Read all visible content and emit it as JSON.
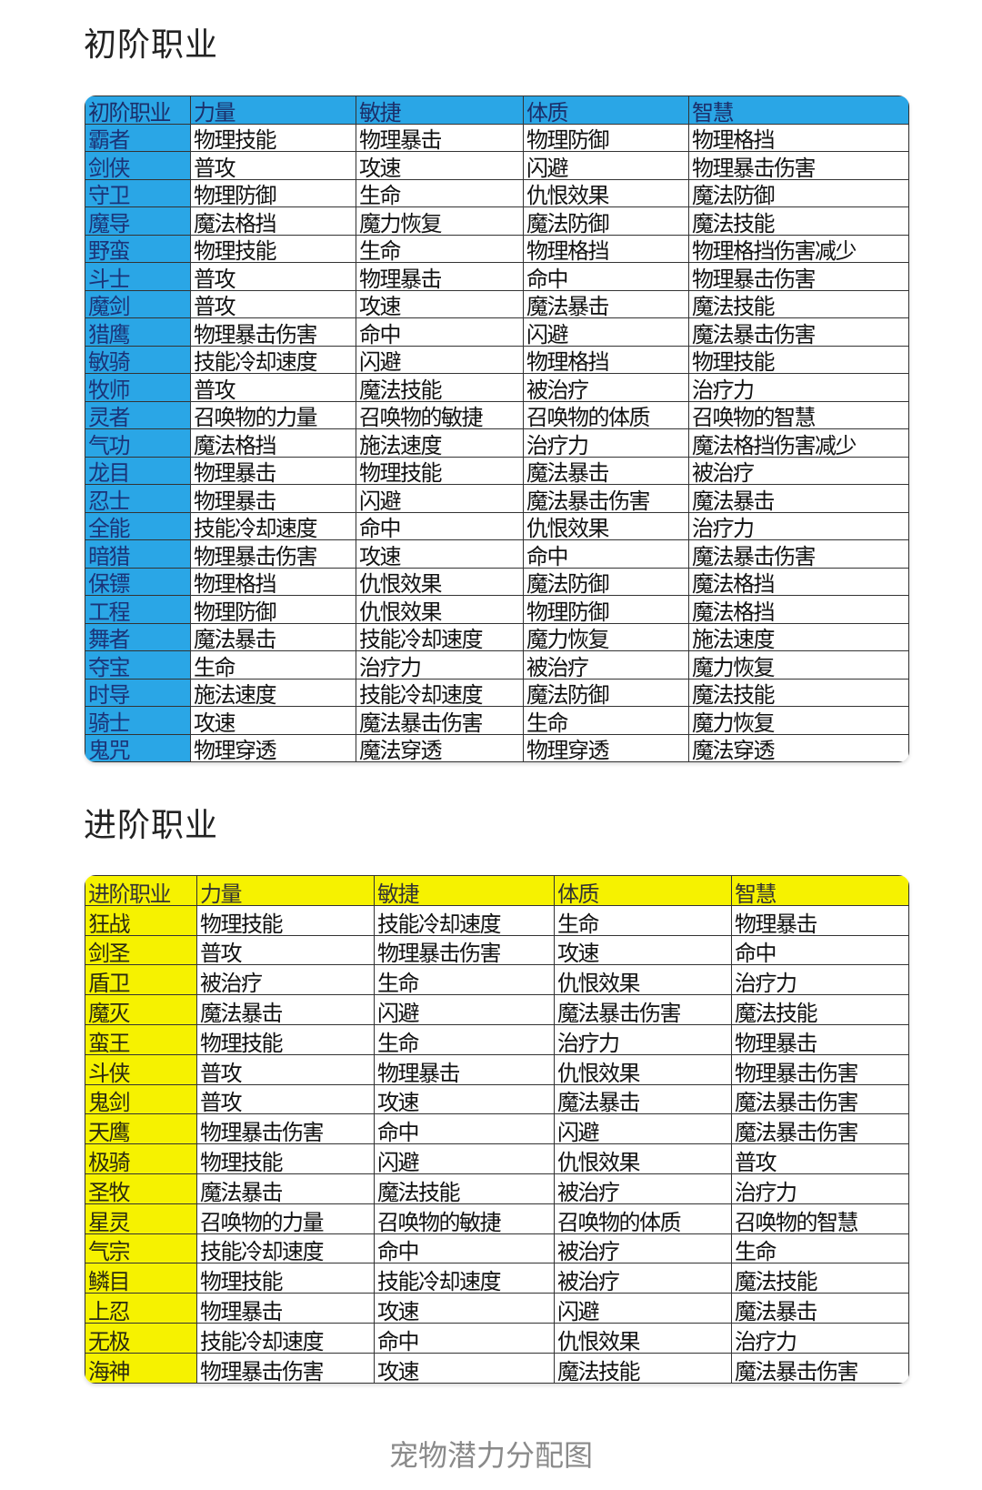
{
  "basic": {
    "title": "初阶职业",
    "header": [
      "初阶职业",
      "力量",
      "敏捷",
      "体质",
      "智慧"
    ],
    "header_color": "#2aa6e6",
    "rows": [
      [
        "霸者",
        "物理技能",
        "物理暴击",
        "物理防御",
        "物理格挡"
      ],
      [
        "剑侠",
        "普攻",
        "攻速",
        "闪避",
        "物理暴击伤害"
      ],
      [
        "守卫",
        "物理防御",
        "生命",
        "仇恨效果",
        "魔法防御"
      ],
      [
        "魔导",
        "魔法格挡",
        "魔力恢复",
        "魔法防御",
        "魔法技能"
      ],
      [
        "野蛮",
        "物理技能",
        "生命",
        "物理格挡",
        "物理格挡伤害减少"
      ],
      [
        "斗士",
        "普攻",
        "物理暴击",
        "命中",
        "物理暴击伤害"
      ],
      [
        "魔剑",
        "普攻",
        "攻速",
        "魔法暴击",
        "魔法技能"
      ],
      [
        "猎鹰",
        "物理暴击伤害",
        "命中",
        "闪避",
        "魔法暴击伤害"
      ],
      [
        "敏骑",
        "技能冷却速度",
        "闪避",
        "物理格挡",
        "物理技能"
      ],
      [
        "牧师",
        "普攻",
        "魔法技能",
        "被治疗",
        "治疗力"
      ],
      [
        "灵者",
        "召唤物的力量",
        "召唤物的敏捷",
        "召唤物的体质",
        "召唤物的智慧"
      ],
      [
        "气功",
        "魔法格挡",
        "施法速度",
        "治疗力",
        "魔法格挡伤害减少"
      ],
      [
        "龙目",
        "物理暴击",
        "物理技能",
        "魔法暴击",
        "被治疗"
      ],
      [
        "忍士",
        "物理暴击",
        "闪避",
        "魔法暴击伤害",
        "魔法暴击"
      ],
      [
        "全能",
        "技能冷却速度",
        "命中",
        "仇恨效果",
        "治疗力"
      ],
      [
        "暗猎",
        "物理暴击伤害",
        "攻速",
        "命中",
        "魔法暴击伤害"
      ],
      [
        "保镖",
        "物理格挡",
        "仇恨效果",
        "魔法防御",
        "魔法格挡"
      ],
      [
        "工程",
        "物理防御",
        "仇恨效果",
        "物理防御",
        "魔法格挡"
      ],
      [
        "舞者",
        "魔法暴击",
        "技能冷却速度",
        "魔力恢复",
        "施法速度"
      ],
      [
        "夺宝",
        "生命",
        "治疗力",
        "被治疗",
        "魔力恢复"
      ],
      [
        "时导",
        "施法速度",
        "技能冷却速度",
        "魔法防御",
        "魔法技能"
      ],
      [
        "骑士",
        "攻速",
        "魔法暴击伤害",
        "生命",
        "魔力恢复"
      ],
      [
        "鬼咒",
        "物理穿透",
        "魔法穿透",
        "物理穿透",
        "魔法穿透"
      ]
    ]
  },
  "advanced": {
    "title": "进阶职业",
    "header": [
      "进阶职业",
      "力量",
      "敏捷",
      "体质",
      "智慧"
    ],
    "header_color": "#f6f200",
    "rows": [
      [
        "狂战",
        "物理技能",
        "技能冷却速度",
        "生命",
        "物理暴击"
      ],
      [
        "剑圣",
        "普攻",
        "物理暴击伤害",
        "攻速",
        "命中"
      ],
      [
        "盾卫",
        "被治疗",
        "生命",
        "仇恨效果",
        "治疗力"
      ],
      [
        "魔灭",
        "魔法暴击",
        "闪避",
        "魔法暴击伤害",
        "魔法技能"
      ],
      [
        "蛮王",
        "物理技能",
        "生命",
        "治疗力",
        "物理暴击"
      ],
      [
        "斗侠",
        "普攻",
        "物理暴击",
        "仇恨效果",
        "物理暴击伤害"
      ],
      [
        "鬼剑",
        "普攻",
        "攻速",
        "魔法暴击",
        "魔法暴击伤害"
      ],
      [
        "天鹰",
        "物理暴击伤害",
        "命中",
        "闪避",
        "魔法暴击伤害"
      ],
      [
        "极骑",
        "物理技能",
        "闪避",
        "仇恨效果",
        "普攻"
      ],
      [
        "圣牧",
        "魔法暴击",
        "魔法技能",
        "被治疗",
        "治疗力"
      ],
      [
        "星灵",
        "召唤物的力量",
        "召唤物的敏捷",
        "召唤物的体质",
        "召唤物的智慧"
      ],
      [
        "气宗",
        "技能冷却速度",
        "命中",
        "被治疗",
        "生命"
      ],
      [
        "鳞目",
        "物理技能",
        "技能冷却速度",
        "被治疗",
        "魔法技能"
      ],
      [
        "上忍",
        "物理暴击",
        "攻速",
        "闪避",
        "魔法暴击"
      ],
      [
        "无极",
        "技能冷却速度",
        "命中",
        "仇恨效果",
        "治疗力"
      ],
      [
        "海神",
        "物理暴击伤害",
        "攻速",
        "魔法技能",
        "魔法暴击伤害"
      ]
    ]
  },
  "caption": "宠物潜力分配图"
}
